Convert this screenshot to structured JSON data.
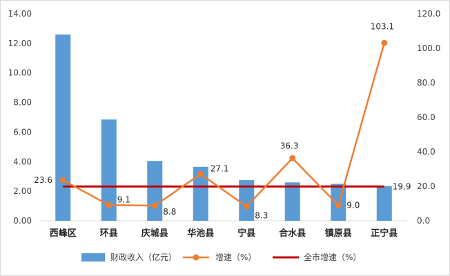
{
  "chart_data": {
    "type": "bar",
    "categories": [
      "西峰区",
      "环县",
      "庆城县",
      "华池县",
      "宁县",
      "合水县",
      "镇原县",
      "正宁县"
    ],
    "series": [
      {
        "name": "财政收入（亿元）",
        "type": "bar",
        "axis": "left",
        "color": "#5b9bd5",
        "values": [
          12.6,
          6.85,
          4.05,
          3.65,
          2.75,
          2.6,
          2.5,
          2.35
        ]
      },
      {
        "name": "增速（%）",
        "type": "line",
        "axis": "right",
        "color": "#ed7d31",
        "values": [
          23.6,
          9.1,
          8.8,
          27.1,
          8.3,
          36.3,
          9.0,
          103.1
        ],
        "labels": [
          "23.6",
          "9.1",
          "8.8",
          "27.1",
          "8.3",
          "36.3",
          "9.0",
          "103.1"
        ]
      },
      {
        "name": "全市增速（%）",
        "type": "line",
        "axis": "right",
        "color": "#c00000",
        "values": [
          19.9,
          19.9,
          19.9,
          19.9,
          19.9,
          19.9,
          19.9,
          19.9
        ],
        "labels": [
          "19.9"
        ]
      }
    ],
    "left_axis": {
      "min": 0,
      "max": 14,
      "step": 2,
      "tick_labels": [
        "0.00",
        "2.00",
        "4.00",
        "6.00",
        "8.00",
        "10.00",
        "12.00",
        "14.00"
      ]
    },
    "right_axis": {
      "min": 0,
      "max": 120,
      "step": 20,
      "tick_labels": [
        "0.0",
        "20.0",
        "40.0",
        "60.0",
        "80.0",
        "100.0",
        "120.0"
      ]
    },
    "grid": false,
    "legend": "bottom"
  }
}
